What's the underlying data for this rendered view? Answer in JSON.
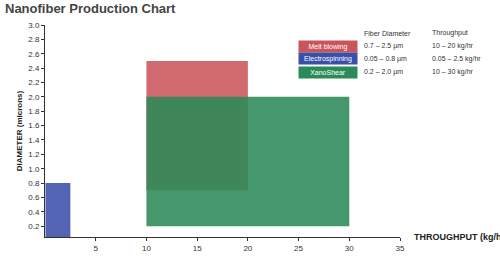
{
  "chart_data": {
    "type": "range",
    "title": "Nanofiber Production Chart",
    "x_label": "THROUGHPUT (kg/hr)",
    "y_label": "DIAMETER (microns)",
    "xlim": [
      0,
      35
    ],
    "xticks": [
      5,
      10,
      15,
      20,
      25,
      30,
      35
    ],
    "ylim": [
      0.05,
      3.0
    ],
    "yticks": [
      0.2,
      0.4,
      0.6,
      0.8,
      {
        "value": 1.0,
        "label": "1.0"
      },
      1.2,
      1.4,
      1.6,
      1.8,
      {
        "value": 2.0,
        "label": "2.0"
      },
      2.2,
      2.4,
      2.6,
      2.8,
      {
        "value": 3.0,
        "label": "3.0"
      }
    ],
    "grid": false,
    "table_headers": [
      "Fiber Diameter",
      "Throughput"
    ],
    "series": [
      {
        "name": "Melt blowing",
        "color": "#c9555a",
        "x_range": [
          10,
          20
        ],
        "y_range": [
          0.7,
          2.5
        ],
        "diameter_label": "0.7 – 2.5 µm",
        "throughput_label": "10 – 20 kg/hr"
      },
      {
        "name": "Electrospinning",
        "color": "#3a4fa8",
        "x_range": [
          0.05,
          2.5
        ],
        "y_range": [
          0.05,
          0.8
        ],
        "diameter_label": "0.05 – 0.8 µm",
        "throughput_label": "0.05 – 2.5 kg/hr"
      },
      {
        "name": "XanoShear",
        "color": "#2a8a58",
        "x_range": [
          10,
          30
        ],
        "y_range": [
          0.2,
          2.0
        ],
        "diameter_label": "0.2 – 2.0 µm",
        "throughput_label": "10 – 30 kg/hr"
      }
    ]
  }
}
